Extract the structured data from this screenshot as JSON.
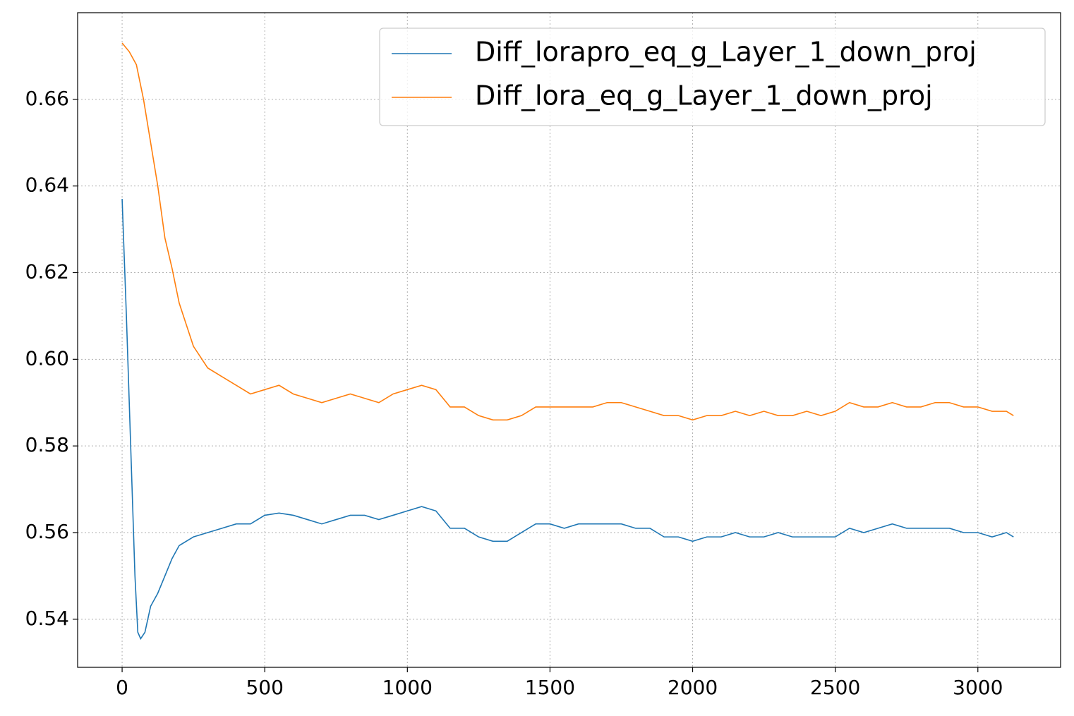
{
  "chart_data": {
    "type": "line",
    "xlim": [
      -156,
      3290
    ],
    "ylim": [
      0.5289,
      0.68
    ],
    "xticks": [
      0,
      500,
      1000,
      1500,
      2000,
      2500,
      3000
    ],
    "yticks": [
      0.54,
      0.56,
      0.58,
      {
        "value": 0.6,
        "label": "0.60"
      },
      0.62,
      0.64,
      0.66
    ],
    "grid": true,
    "legend": "upper right",
    "series": [
      {
        "name": "Diff_lorapro_eq_g_Layer_1_down_proj",
        "color": "#1f77b4",
        "x": [
          0,
          15,
          30,
          45,
          55,
          65,
          80,
          100,
          125,
          150,
          175,
          200,
          250,
          300,
          350,
          400,
          450,
          500,
          550,
          600,
          650,
          700,
          750,
          800,
          850,
          900,
          950,
          1000,
          1050,
          1100,
          1150,
          1200,
          1250,
          1300,
          1350,
          1400,
          1450,
          1500,
          1550,
          1600,
          1650,
          1700,
          1750,
          1800,
          1850,
          1900,
          1950,
          2000,
          2050,
          2100,
          2150,
          2200,
          2250,
          2300,
          2350,
          2400,
          2450,
          2500,
          2550,
          2600,
          2650,
          2700,
          2750,
          2800,
          2850,
          2900,
          2950,
          3000,
          3050,
          3100,
          3125
        ],
        "values": [
          0.637,
          0.61,
          0.58,
          0.55,
          0.537,
          0.5355,
          0.537,
          0.543,
          0.546,
          0.55,
          0.554,
          0.557,
          0.559,
          0.56,
          0.561,
          0.562,
          0.562,
          0.564,
          0.5645,
          0.564,
          0.563,
          0.562,
          0.563,
          0.564,
          0.564,
          0.563,
          0.564,
          0.565,
          0.566,
          0.565,
          0.561,
          0.561,
          0.559,
          0.558,
          0.558,
          0.56,
          0.562,
          0.562,
          0.561,
          0.562,
          0.562,
          0.562,
          0.562,
          0.561,
          0.561,
          0.559,
          0.559,
          0.558,
          0.559,
          0.559,
          0.56,
          0.559,
          0.559,
          0.56,
          0.559,
          0.559,
          0.559,
          0.559,
          0.561,
          0.56,
          0.561,
          0.562,
          0.561,
          0.561,
          0.561,
          0.561,
          0.56,
          0.56,
          0.559,
          0.56,
          0.559
        ]
      },
      {
        "name": "Diff_lora_eq_g_Layer_1_down_proj",
        "color": "#ff7f0e",
        "x": [
          0,
          25,
          50,
          75,
          100,
          125,
          150,
          175,
          200,
          225,
          250,
          300,
          350,
          400,
          450,
          500,
          550,
          600,
          650,
          700,
          750,
          800,
          850,
          900,
          950,
          1000,
          1050,
          1100,
          1150,
          1200,
          1250,
          1300,
          1350,
          1400,
          1450,
          1500,
          1550,
          1600,
          1650,
          1700,
          1750,
          1800,
          1850,
          1900,
          1950,
          2000,
          2050,
          2100,
          2150,
          2200,
          2250,
          2300,
          2350,
          2400,
          2450,
          2500,
          2550,
          2600,
          2650,
          2700,
          2750,
          2800,
          2850,
          2900,
          2950,
          3000,
          3050,
          3100,
          3125
        ],
        "values": [
          0.673,
          0.671,
          0.668,
          0.66,
          0.65,
          0.64,
          0.628,
          0.621,
          0.613,
          0.608,
          0.603,
          0.598,
          0.596,
          0.594,
          0.592,
          0.593,
          0.594,
          0.592,
          0.591,
          0.59,
          0.591,
          0.592,
          0.591,
          0.59,
          0.592,
          0.593,
          0.594,
          0.593,
          0.589,
          0.589,
          0.587,
          0.586,
          0.586,
          0.587,
          0.589,
          0.589,
          0.589,
          0.589,
          0.589,
          0.59,
          0.59,
          0.589,
          0.588,
          0.587,
          0.587,
          0.586,
          0.587,
          0.587,
          0.588,
          0.587,
          0.588,
          0.587,
          0.587,
          0.588,
          0.587,
          0.588,
          0.59,
          0.589,
          0.589,
          0.59,
          0.589,
          0.589,
          0.59,
          0.59,
          0.589,
          0.589,
          0.588,
          0.588,
          0.587
        ]
      }
    ]
  }
}
